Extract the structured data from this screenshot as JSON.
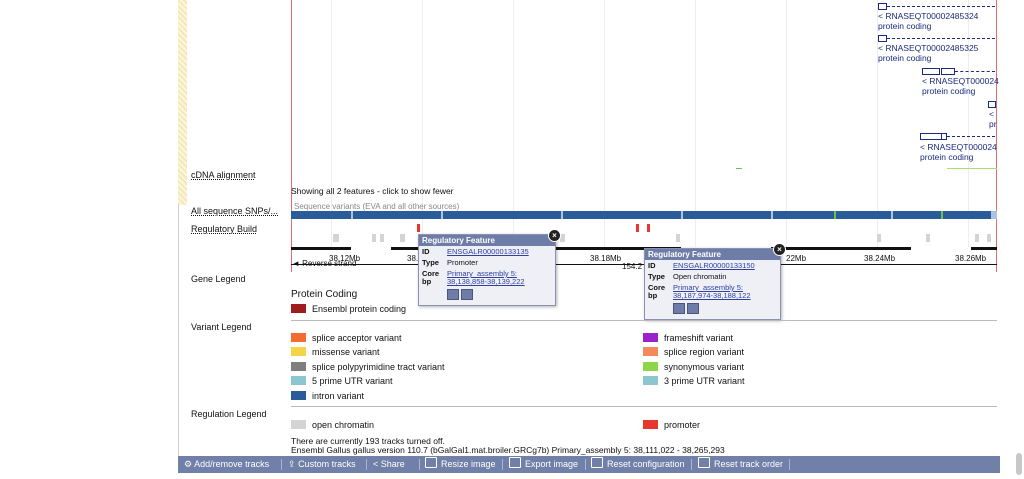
{
  "tracks": {
    "cdna_label": "cDNA alignment",
    "features_note": "Showing all 2 features - click to show fewer",
    "snp_label": "All sequence SNPs/...",
    "snp_sublabel": "Sequence variants (EVA and all other sources)",
    "regbuild_label": "Regulatory Build"
  },
  "transcripts": [
    {
      "name": "< RNASEQT00002485324",
      "biotype": "protein coding"
    },
    {
      "name": "< RNASEQT00002485325",
      "biotype": "protein coding"
    },
    {
      "name": "< RNASEQT000024",
      "biotype": "protein coding"
    },
    {
      "name": "<",
      "biotype": "pr"
    },
    {
      "name": "< RNASEQT000024",
      "biotype": "protein coding"
    }
  ],
  "ruler": {
    "strand": "Reverse strand",
    "ticks": [
      "38.12Mb",
      "38.1",
      "38.18Mb",
      "154.2",
      "22Mb",
      "38.24Mb",
      "38.26Mb"
    ]
  },
  "popups": [
    {
      "title": "Regulatory Feature",
      "id_key": "ID",
      "id_val": "ENSGALR00000133135",
      "type_key": "Type",
      "type_val": "Promoter",
      "core_key": "Core",
      "bp_key": "bp",
      "core_val1": "Primary_assembly 5:",
      "core_val2": "38,138,858-38,139,222"
    },
    {
      "title": "Regulatory Feature",
      "id_key": "ID",
      "id_val": "ENSGALR00000133150",
      "type_key": "Type",
      "type_val": "Open chromatin",
      "core_key": "Core",
      "bp_key": "bp",
      "core_val1": "Primary_assembly 5:",
      "core_val2": "38,187,974-38,188,122"
    }
  ],
  "legends": {
    "gene_title": "Gene Legend",
    "gene_subtitle": "Protein Coding",
    "gene_items": [
      {
        "label": "Ensembl protein coding",
        "color": "#a01b1b"
      }
    ],
    "variant_title": "Variant Legend",
    "variant_items": [
      {
        "label": "splice acceptor variant",
        "color": "#f26d2f"
      },
      {
        "label": "frameshift variant",
        "color": "#9b22c8"
      },
      {
        "label": "missense variant",
        "color": "#f5d547"
      },
      {
        "label": "splice region variant",
        "color": "#f28a5a"
      },
      {
        "label": "splice polypyrimidine tract variant",
        "color": "#7f7f7f"
      },
      {
        "label": "synonymous variant",
        "color": "#8cd649"
      },
      {
        "label": "5 prime UTR variant",
        "color": "#8cc7d0"
      },
      {
        "label": "3 prime UTR variant",
        "color": "#8cc7d0"
      },
      {
        "label": "intron variant",
        "color": "#2a5c9a"
      }
    ],
    "regulation_title": "Regulation Legend",
    "regulation_items": [
      {
        "label": "open chromatin",
        "color": "#d4d4d4"
      },
      {
        "label": "promoter",
        "color": "#e8382e"
      }
    ]
  },
  "footer": {
    "tracks_off": "There are currently 193 tracks turned off.",
    "version": "Ensembl Gallus gallus version 110.7 (bGalGal1.mat.broiler.GRCg7b) Primary_assembly 5: 38,111,022 - 38,265,293"
  },
  "toolbar": {
    "add_remove": "Add/remove tracks",
    "custom": "Custom tracks",
    "share": "Share",
    "resize": "Resize image",
    "export": "Export image",
    "reset_config": "Reset configuration",
    "reset_order": "Reset track order"
  }
}
